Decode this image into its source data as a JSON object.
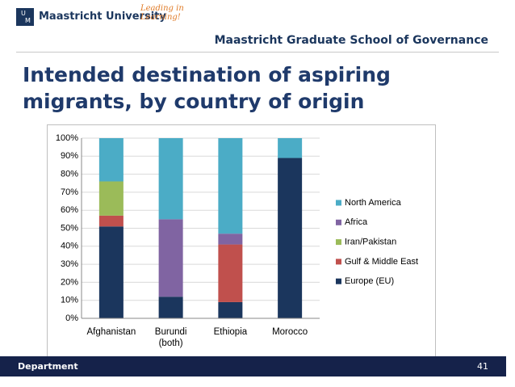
{
  "header": {
    "university": "Maastricht University",
    "tagline": "Leading in Learning!",
    "school": "Maastricht Graduate School of Governance"
  },
  "slide_title": "Intended destination of aspiring migrants, by country of origin",
  "footer": {
    "department": "Department",
    "page": "41"
  },
  "chart_data": {
    "type": "stacked-bar",
    "categories": [
      "Afghanistan",
      "Burundi (both)",
      "Ethiopia",
      "Morocco"
    ],
    "series": [
      {
        "name": "Europe (EU)",
        "color": "#1b365d",
        "values": [
          51,
          12,
          9,
          89
        ]
      },
      {
        "name": "Gulf & Middle East",
        "color": "#c0504d",
        "values": [
          6,
          0,
          32,
          0
        ]
      },
      {
        "name": "Iran/Pakistan",
        "color": "#9bbb59",
        "values": [
          19,
          0,
          0,
          0
        ]
      },
      {
        "name": "Africa",
        "color": "#8064a2",
        "values": [
          0,
          43,
          6,
          0
        ]
      },
      {
        "name": "North America",
        "color": "#4bacc6",
        "values": [
          24,
          45,
          53,
          11
        ]
      }
    ],
    "ylim": [
      0,
      100
    ],
    "yticks": [
      {
        "value": 0,
        "label": "0%"
      },
      {
        "value": 10,
        "label": "10%"
      },
      {
        "value": 20,
        "label": "20%"
      },
      {
        "value": 30,
        "label": "30%"
      },
      {
        "value": 40,
        "label": "40%"
      },
      {
        "value": 50,
        "label": "50%"
      },
      {
        "value": 60,
        "label": "60%"
      },
      {
        "value": 70,
        "label": "70%"
      },
      {
        "value": 80,
        "label": "80%"
      },
      {
        "value": 90,
        "label": "90%"
      },
      {
        "value": 100,
        "label": "100%"
      }
    ],
    "grid": true,
    "legend": "right"
  }
}
